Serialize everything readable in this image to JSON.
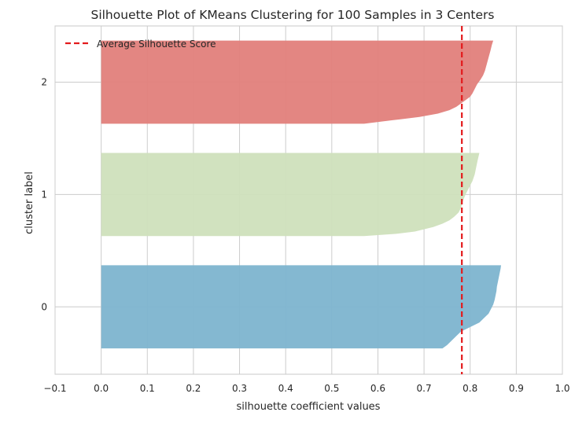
{
  "chart_data": {
    "type": "area",
    "title": "Silhouette Plot of KMeans Clustering for 100 Samples in 3 Centers",
    "xlabel": "silhouette coefficient values",
    "ylabel": "cluster label",
    "xlim": [
      -0.1,
      1.0
    ],
    "ylim": [
      -0.6,
      2.5
    ],
    "xticks": [
      "−0.1",
      "0.0",
      "0.1",
      "0.2",
      "0.3",
      "0.4",
      "0.5",
      "0.6",
      "0.7",
      "0.8",
      "0.9",
      "1.0"
    ],
    "xtick_values": [
      -0.1,
      0.0,
      0.1,
      0.2,
      0.3,
      0.4,
      0.5,
      0.6,
      0.7,
      0.8,
      0.9,
      1.0
    ],
    "yticks": [
      "0",
      "1",
      "2"
    ],
    "ytick_values": [
      0,
      1,
      2
    ],
    "grid": true,
    "average_silhouette_score": 0.782,
    "legend": {
      "placement": "top-left",
      "entries": [
        "Average Silhouette Score"
      ]
    },
    "clusters": [
      {
        "label": "0",
        "color": "#7db4cf",
        "band": [
          -0.37,
          0.37
        ],
        "profile": [
          [
            -0.37,
            0.74
          ],
          [
            -0.34,
            0.75
          ],
          [
            -0.3,
            0.76
          ],
          [
            -0.26,
            0.77
          ],
          [
            -0.22,
            0.78
          ],
          [
            -0.18,
            0.8
          ],
          [
            -0.14,
            0.82
          ],
          [
            -0.1,
            0.83
          ],
          [
            -0.06,
            0.84
          ],
          [
            -0.02,
            0.845
          ],
          [
            0.02,
            0.85
          ],
          [
            0.06,
            0.853
          ],
          [
            0.1,
            0.855
          ],
          [
            0.14,
            0.857
          ],
          [
            0.18,
            0.858
          ],
          [
            0.22,
            0.86
          ],
          [
            0.26,
            0.862
          ],
          [
            0.3,
            0.864
          ],
          [
            0.34,
            0.866
          ],
          [
            0.37,
            0.867
          ]
        ]
      },
      {
        "label": "1",
        "color": "#cfe0bc",
        "band": [
          0.63,
          1.37
        ],
        "profile": [
          [
            0.63,
            0.57
          ],
          [
            0.65,
            0.64
          ],
          [
            0.67,
            0.68
          ],
          [
            0.69,
            0.7
          ],
          [
            0.71,
            0.72
          ],
          [
            0.74,
            0.74
          ],
          [
            0.77,
            0.755
          ],
          [
            0.8,
            0.765
          ],
          [
            0.84,
            0.775
          ],
          [
            0.88,
            0.78
          ],
          [
            0.92,
            0.783
          ],
          [
            0.96,
            0.786
          ],
          [
            1.0,
            0.79
          ],
          [
            1.04,
            0.795
          ],
          [
            1.08,
            0.8
          ],
          [
            1.12,
            0.805
          ],
          [
            1.18,
            0.81
          ],
          [
            1.24,
            0.813
          ],
          [
            1.3,
            0.816
          ],
          [
            1.37,
            0.82
          ]
        ]
      },
      {
        "label": "2",
        "color": "#e27f7b",
        "band": [
          1.63,
          2.37
        ],
        "profile": [
          [
            1.63,
            0.57
          ],
          [
            1.66,
            0.63
          ],
          [
            1.69,
            0.69
          ],
          [
            1.72,
            0.73
          ],
          [
            1.75,
            0.755
          ],
          [
            1.78,
            0.77
          ],
          [
            1.81,
            0.78
          ],
          [
            1.84,
            0.79
          ],
          [
            1.87,
            0.8
          ],
          [
            1.9,
            0.805
          ],
          [
            1.94,
            0.81
          ],
          [
            1.98,
            0.815
          ],
          [
            2.02,
            0.822
          ],
          [
            2.06,
            0.828
          ],
          [
            2.1,
            0.832
          ],
          [
            2.16,
            0.836
          ],
          [
            2.22,
            0.84
          ],
          [
            2.28,
            0.844
          ],
          [
            2.33,
            0.847
          ],
          [
            2.37,
            0.85
          ]
        ]
      }
    ],
    "colors": {
      "average_line": "#e31a1c",
      "grid": "#cccccc",
      "axes": "#c8c8c8"
    }
  }
}
